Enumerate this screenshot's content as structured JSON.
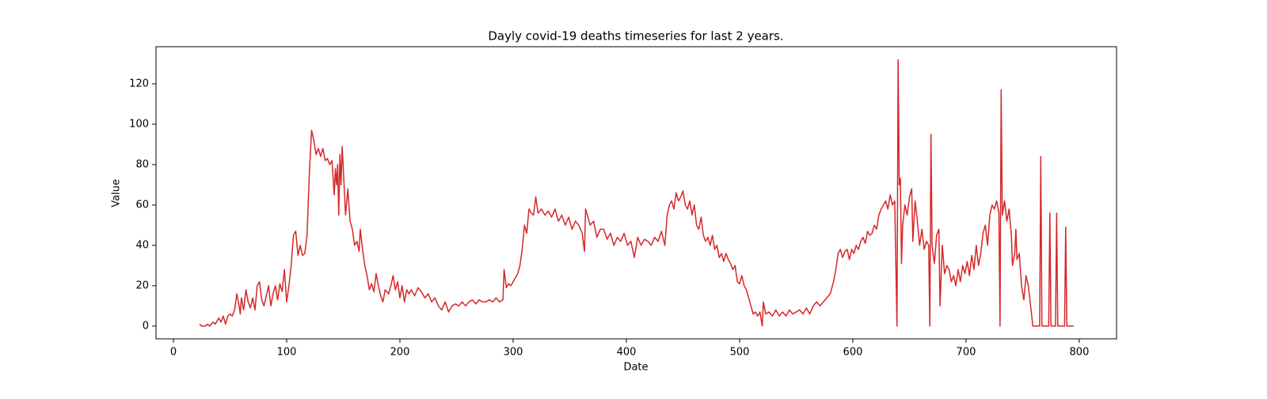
{
  "chart_data": {
    "type": "line",
    "title": "Dayly covid-19 deaths timeseries for last 2 years.",
    "xlabel": "Date",
    "ylabel": "Value",
    "xlim": [
      -15.4,
      832.9
    ],
    "ylim": [
      -6.3,
      138.4
    ],
    "xticks": [
      0,
      100,
      200,
      300,
      400,
      500,
      600,
      700,
      800
    ],
    "yticks": [
      0,
      20,
      40,
      60,
      80,
      100,
      120
    ],
    "grid": false,
    "series": [
      {
        "color": "#d62728",
        "x": [
          23,
          25,
          28,
          30,
          32,
          35,
          37,
          40,
          42,
          44,
          46,
          48,
          50,
          52,
          54,
          56,
          58,
          59,
          60,
          62,
          64,
          66,
          68,
          70,
          72,
          74,
          76,
          78,
          80,
          82,
          84,
          86,
          88,
          90,
          92,
          94,
          96,
          98,
          100,
          102,
          104,
          106,
          108,
          110,
          112,
          114,
          116,
          118,
          120,
          122,
          124,
          126,
          128,
          130,
          132,
          134,
          136,
          138,
          140,
          142,
          143,
          144,
          145,
          146,
          147,
          148,
          149,
          150,
          152,
          154,
          156,
          158,
          160,
          162,
          164,
          165,
          167,
          169,
          171,
          173,
          175,
          177,
          179,
          181,
          183,
          185,
          187,
          190,
          192,
          194,
          196,
          198,
          200,
          202,
          204,
          206,
          208,
          210,
          213,
          216,
          219,
          222,
          225,
          228,
          231,
          234,
          237,
          240,
          243,
          246,
          249,
          252,
          255,
          258,
          261,
          264,
          267,
          270,
          273,
          276,
          279,
          282,
          285,
          288,
          291,
          292,
          294,
          296,
          298,
          300,
          302,
          304,
          306,
          308,
          310,
          312,
          314,
          316,
          318,
          320,
          322,
          325,
          328,
          331,
          334,
          337,
          340,
          343,
          346,
          349,
          352,
          355,
          358,
          361,
          363,
          364,
          366,
          368,
          371,
          374,
          377,
          380,
          383,
          386,
          389,
          392,
          395,
          398,
          401,
          404,
          407,
          410,
          413,
          416,
          419,
          422,
          425,
          428,
          431,
          434,
          436,
          438,
          440,
          442,
          444,
          446,
          448,
          450,
          452,
          454,
          456,
          458,
          460,
          462,
          464,
          466,
          468,
          470,
          472,
          474,
          476,
          478,
          480,
          482,
          484,
          486,
          488,
          490,
          492,
          494,
          496,
          498,
          500,
          502,
          504,
          506,
          508,
          510,
          512,
          514,
          516,
          518,
          520,
          521,
          523,
          526,
          529,
          532,
          535,
          538,
          541,
          544,
          547,
          550,
          553,
          556,
          559,
          562,
          565,
          568,
          571,
          574,
          577,
          580,
          583,
          585,
          587,
          589,
          591,
          593,
          595,
          597,
          599,
          601,
          603,
          605,
          607,
          609,
          611,
          613,
          615,
          617,
          619,
          621,
          623,
          625,
          627,
          629,
          631,
          633,
          635,
          637,
          639,
          640,
          641,
          642,
          643,
          644,
          646,
          648,
          650,
          652,
          653,
          655,
          657,
          659,
          661,
          663,
          665,
          667,
          668,
          669,
          670,
          672,
          674,
          676,
          677,
          679,
          681,
          683,
          685,
          687,
          689,
          691,
          693,
          695,
          697,
          699,
          701,
          703,
          705,
          707,
          709,
          711,
          713,
          715,
          717,
          719,
          721,
          723,
          725,
          727,
          729,
          730,
          731,
          732,
          734,
          736,
          738,
          740,
          741,
          743,
          744,
          745,
          747,
          749,
          751,
          753,
          755,
          757,
          759,
          765,
          766,
          767,
          773,
          774,
          775,
          779,
          780,
          781,
          787,
          788,
          789,
          795
        ],
        "values": [
          1,
          0,
          0,
          1,
          0,
          2,
          1,
          4,
          2,
          5,
          1,
          5,
          6,
          5,
          8,
          16,
          10,
          6,
          14,
          8,
          18,
          12,
          9,
          14,
          8,
          20,
          22,
          13,
          10,
          15,
          20,
          10,
          16,
          20,
          13,
          21,
          17,
          28,
          12,
          20,
          30,
          45,
          47,
          35,
          40,
          35,
          36,
          45,
          75,
          97,
          92,
          85,
          88,
          84,
          88,
          82,
          83,
          80,
          82,
          65,
          78,
          70,
          80,
          55,
          85,
          70,
          89,
          78,
          55,
          68,
          52,
          48,
          40,
          42,
          37,
          48,
          38,
          30,
          25,
          18,
          21,
          17,
          26,
          20,
          15,
          12,
          18,
          16,
          20,
          25,
          18,
          22,
          14,
          20,
          12,
          18,
          16,
          18,
          15,
          19,
          17,
          14,
          16,
          12,
          14,
          10,
          8,
          12,
          7,
          10,
          11,
          10,
          12,
          10,
          12,
          13,
          11,
          13,
          12,
          12,
          13,
          12,
          14,
          12,
          13,
          28,
          19,
          21,
          20,
          22,
          24,
          26,
          30,
          38,
          50,
          46,
          58,
          56,
          55,
          64,
          56,
          58,
          55,
          57,
          54,
          58,
          52,
          55,
          50,
          54,
          48,
          52,
          50,
          46,
          37,
          58,
          54,
          50,
          52,
          44,
          48,
          48,
          43,
          46,
          40,
          44,
          42,
          46,
          40,
          42,
          34,
          44,
          40,
          43,
          42,
          40,
          44,
          42,
          47,
          40,
          55,
          60,
          62,
          58,
          66,
          62,
          64,
          67,
          60,
          58,
          62,
          55,
          60,
          50,
          48,
          54,
          45,
          42,
          44,
          40,
          45,
          38,
          40,
          34,
          36,
          32,
          36,
          33,
          31,
          28,
          30,
          22,
          21,
          25,
          20,
          18,
          14,
          10,
          6,
          7,
          5,
          7,
          0,
          12,
          6,
          7,
          5,
          8,
          5,
          7,
          5,
          8,
          6,
          7,
          8,
          6,
          9,
          6,
          10,
          12,
          10,
          12,
          14,
          16,
          22,
          28,
          36,
          38,
          34,
          37,
          38,
          33,
          38,
          36,
          40,
          38,
          42,
          44,
          41,
          47,
          45,
          46,
          50,
          48,
          55,
          58,
          60,
          62,
          58,
          65,
          60,
          62,
          0,
          132,
          70,
          73,
          31,
          50,
          60,
          55,
          64,
          68,
          42,
          62,
          52,
          40,
          48,
          38,
          42,
          40,
          0,
          95,
          40,
          31,
          45,
          48,
          10,
          40,
          26,
          30,
          28,
          22,
          25,
          20,
          28,
          22,
          30,
          26,
          32,
          25,
          35,
          28,
          40,
          30,
          36,
          46,
          50,
          40,
          55,
          60,
          58,
          62,
          56,
          0,
          117,
          55,
          62,
          52,
          58,
          45,
          30,
          36,
          48,
          33,
          36,
          20,
          13,
          25,
          20,
          10,
          0,
          0,
          84,
          0,
          0,
          56,
          0,
          0,
          56,
          0,
          0,
          49,
          0,
          0
        ]
      }
    ]
  }
}
